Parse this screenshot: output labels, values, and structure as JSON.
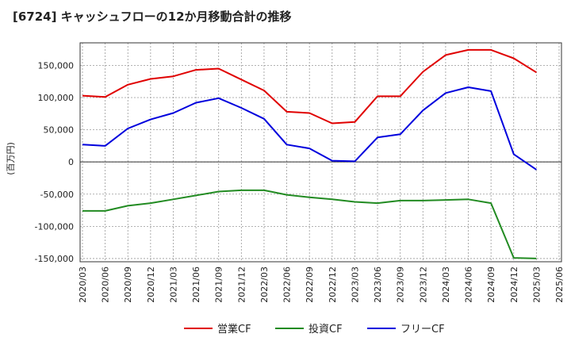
{
  "chart_data": {
    "type": "line",
    "title": "[6724]  キャッシュフローの12か月移動合計の推移",
    "ylabel": "(百万円)",
    "xlabel": "",
    "ylim": [
      -155000,
      185000
    ],
    "yticks": [
      150000,
      100000,
      50000,
      0,
      -50000,
      -100000,
      -150000
    ],
    "ytick_labels": [
      "150,000",
      "100,000",
      "50,000",
      "0",
      "-50,000",
      "-100,000",
      "-150,000"
    ],
    "categories": [
      "2020/03",
      "2020/06",
      "2020/09",
      "2020/12",
      "2021/03",
      "2021/06",
      "2021/09",
      "2021/12",
      "2022/03",
      "2022/06",
      "2022/09",
      "2022/12",
      "2023/03",
      "2023/06",
      "2023/09",
      "2023/12",
      "2024/03",
      "2024/06",
      "2024/09",
      "2024/12",
      "2025/03",
      "2025/06"
    ],
    "grid": true,
    "legend": "bottom",
    "series": [
      {
        "name": "営業CF",
        "color": "#e00000",
        "values": [
          103000,
          101000,
          120000,
          129000,
          133000,
          143000,
          145000,
          128000,
          111000,
          78000,
          76000,
          60000,
          62000,
          102000,
          102000,
          140000,
          166000,
          174000,
          174000,
          161000,
          139000,
          null
        ]
      },
      {
        "name": "投資CF",
        "color": "#228b22",
        "values": [
          -76000,
          -76000,
          -68000,
          -64000,
          -58000,
          -52000,
          -46000,
          -44000,
          -44000,
          -51000,
          -55000,
          -58000,
          -62000,
          -64000,
          -60000,
          -60000,
          -59000,
          -58000,
          -64000,
          -149000,
          -150000,
          null
        ]
      },
      {
        "name": "フリーCF",
        "color": "#0000dd",
        "values": [
          27000,
          25000,
          52000,
          66000,
          76000,
          92000,
          99000,
          84000,
          67000,
          27000,
          21000,
          2000,
          1000,
          38000,
          43000,
          80000,
          107000,
          116000,
          110000,
          12000,
          -12000,
          null
        ]
      }
    ]
  }
}
